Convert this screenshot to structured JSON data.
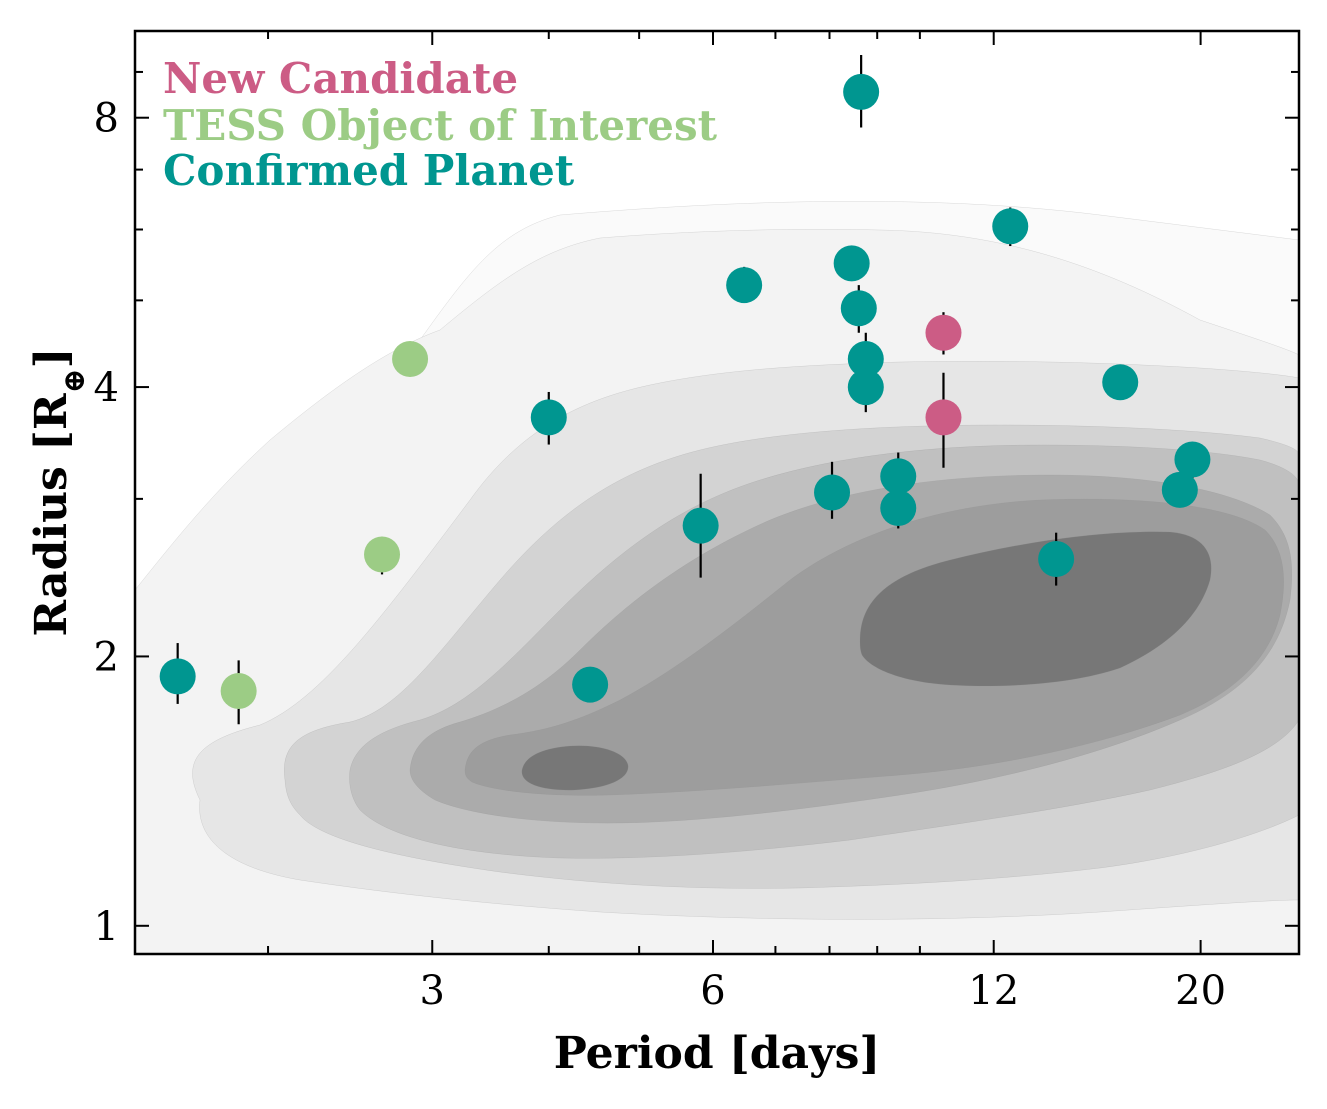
{
  "chart_data": {
    "type": "scatter",
    "xscale": "log",
    "yscale": "log",
    "xlim": [
      1.44,
      25.5
    ],
    "ylim": [
      0.93,
      10.0
    ],
    "xlabel": "Period [days]",
    "ylabel_main": "Radius [R",
    "ylabel_sub": "⊕",
    "ylabel_close": "]",
    "x_ticks": [
      {
        "value": 3,
        "label": "3"
      },
      {
        "value": 6,
        "label": "6"
      },
      {
        "value": 12,
        "label": "12"
      },
      {
        "value": 20,
        "label": "20"
      }
    ],
    "x_minor_ticks": [
      2,
      4,
      5,
      7,
      8,
      9,
      10,
      30
    ],
    "y_ticks": [
      {
        "value": 1,
        "label": "1"
      },
      {
        "value": 2,
        "label": "2"
      },
      {
        "value": 4,
        "label": "4"
      },
      {
        "value": 8,
        "label": "8"
      }
    ],
    "y_minor_ticks": [
      3,
      5,
      6,
      7,
      9
    ],
    "legend": [
      {
        "label": "New Candidate",
        "color": "#cc5c85"
      },
      {
        "label": "TESS Object of Interest",
        "color": "#9ccc85"
      },
      {
        "label": "Confirmed Planet",
        "color": "#009690"
      }
    ],
    "density_levels": [
      {
        "level": 1,
        "color": "#fafafa"
      },
      {
        "level": 2,
        "color": "#f3f3f3"
      },
      {
        "level": 3,
        "color": "#e6e6e6"
      },
      {
        "level": 4,
        "color": "#d3d3d3"
      },
      {
        "level": 5,
        "color": "#c0c0c0"
      },
      {
        "level": 6,
        "color": "#ababab"
      },
      {
        "level": 7,
        "color": "#9d9d9d"
      },
      {
        "level": 8,
        "color": "#777777"
      }
    ],
    "series": [
      {
        "name": "New Candidate",
        "color": "#cc5c85",
        "points": [
          {
            "x": 10.6,
            "y": 4.6,
            "ylo": 4.35,
            "yhi": 4.85
          },
          {
            "x": 10.6,
            "y": 3.7,
            "ylo": 3.25,
            "yhi": 4.15
          }
        ]
      },
      {
        "name": "TESS Object of Interest",
        "color": "#9ccc85",
        "points": [
          {
            "x": 2.84,
            "y": 4.3,
            "ylo": null,
            "yhi": null
          },
          {
            "x": 2.65,
            "y": 2.6,
            "ylo": 2.47,
            "yhi": 2.72
          },
          {
            "x": 1.86,
            "y": 1.83,
            "ylo": 1.68,
            "yhi": 1.98
          }
        ]
      },
      {
        "name": "Confirmed Planet",
        "color": "#009690",
        "points": [
          {
            "x": 1.6,
            "y": 1.9,
            "ylo": 1.77,
            "yhi": 2.07
          },
          {
            "x": 4.0,
            "y": 3.7,
            "ylo": 3.45,
            "yhi": 3.95
          },
          {
            "x": 4.43,
            "y": 1.86,
            "ylo": null,
            "yhi": null
          },
          {
            "x": 5.82,
            "y": 2.8,
            "ylo": 2.45,
            "yhi": 3.2
          },
          {
            "x": 6.48,
            "y": 5.2,
            "ylo": 4.97,
            "yhi": 5.45
          },
          {
            "x": 8.05,
            "y": 3.05,
            "ylo": 2.85,
            "yhi": 3.3
          },
          {
            "x": 8.45,
            "y": 5.5,
            "ylo": null,
            "yhi": null
          },
          {
            "x": 8.6,
            "y": 4.9,
            "ylo": 4.6,
            "yhi": 5.2
          },
          {
            "x": 8.65,
            "y": 8.55,
            "ylo": 7.8,
            "yhi": 9.4
          },
          {
            "x": 8.75,
            "y": 4.3,
            "ylo": 4.05,
            "yhi": 4.6
          },
          {
            "x": 8.75,
            "y": 4.0,
            "ylo": 3.75,
            "yhi": 4.2
          },
          {
            "x": 9.48,
            "y": 3.18,
            "ylo": 3.0,
            "yhi": 3.38
          },
          {
            "x": 9.48,
            "y": 2.93,
            "ylo": 2.78,
            "yhi": 3.1
          },
          {
            "x": 12.5,
            "y": 6.05,
            "ylo": 5.75,
            "yhi": 6.35
          },
          {
            "x": 14.0,
            "y": 2.57,
            "ylo": 2.4,
            "yhi": 2.75
          },
          {
            "x": 16.4,
            "y": 4.05,
            "ylo": null,
            "yhi": null
          },
          {
            "x": 19.0,
            "y": 3.07,
            "ylo": null,
            "yhi": null
          },
          {
            "x": 19.6,
            "y": 3.32,
            "ylo": 3.15,
            "yhi": 3.45
          }
        ]
      }
    ]
  }
}
